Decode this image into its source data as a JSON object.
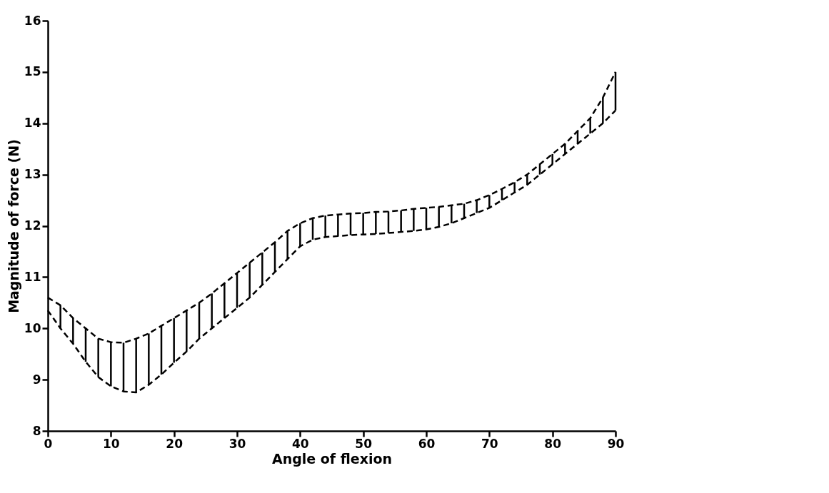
{
  "chart_data": {
    "type": "line",
    "xlabel": "Angle of flexion",
    "ylabel": "Magnitude of force (N)",
    "x": [
      0,
      2,
      4,
      6,
      8,
      10,
      12,
      14,
      16,
      18,
      20,
      22,
      24,
      26,
      28,
      30,
      32,
      34,
      36,
      38,
      40,
      42,
      44,
      46,
      48,
      50,
      52,
      54,
      56,
      58,
      60,
      62,
      64,
      66,
      68,
      70,
      72,
      74,
      76,
      78,
      80,
      82,
      84,
      86,
      88,
      90
    ],
    "series": [
      {
        "color": "#000000",
        "errors": [
          null,
          [
            10.0,
            10.45
          ],
          [
            9.7,
            10.2
          ],
          [
            9.35,
            10.0
          ],
          [
            9.05,
            9.8
          ],
          [
            8.87,
            9.73
          ],
          [
            8.77,
            9.72
          ],
          [
            8.75,
            9.8
          ],
          [
            8.9,
            9.9
          ],
          [
            9.1,
            10.05
          ],
          [
            9.33,
            10.2
          ],
          [
            9.55,
            10.35
          ],
          [
            9.8,
            10.5
          ],
          [
            10.0,
            10.68
          ],
          [
            10.2,
            10.88
          ],
          [
            10.4,
            11.08
          ],
          [
            10.6,
            11.28
          ],
          [
            10.85,
            11.48
          ],
          [
            11.1,
            11.68
          ],
          [
            11.35,
            11.9
          ],
          [
            11.6,
            12.05
          ],
          [
            11.73,
            12.15
          ],
          [
            11.78,
            12.2
          ],
          [
            11.8,
            12.22
          ],
          [
            11.82,
            12.24
          ],
          [
            11.83,
            12.25
          ],
          [
            11.84,
            12.27
          ],
          [
            11.86,
            12.28
          ],
          [
            11.88,
            12.3
          ],
          [
            11.9,
            12.33
          ],
          [
            11.93,
            12.35
          ],
          [
            11.98,
            12.37
          ],
          [
            12.05,
            12.4
          ],
          [
            12.15,
            12.43
          ],
          [
            12.25,
            12.5
          ],
          [
            12.35,
            12.6
          ],
          [
            12.5,
            12.72
          ],
          [
            12.65,
            12.85
          ],
          [
            12.8,
            13.0
          ],
          [
            13.0,
            13.2
          ],
          [
            13.2,
            13.4
          ],
          [
            13.4,
            13.6
          ],
          [
            13.6,
            13.85
          ],
          [
            13.8,
            14.1
          ],
          [
            14.0,
            14.5
          ],
          [
            14.25,
            15.0
          ]
        ],
        "values": [
          10.6,
          10.45,
          10.2,
          10.0,
          9.8,
          9.73,
          9.72,
          9.8,
          9.9,
          10.05,
          10.2,
          10.35,
          10.5,
          10.68,
          10.88,
          11.08,
          11.28,
          11.48,
          11.68,
          11.9,
          12.05,
          12.15,
          12.2,
          12.22,
          12.24,
          12.25,
          12.27,
          12.28,
          12.3,
          12.33,
          12.35,
          12.37,
          12.4,
          12.43,
          12.5,
          12.6,
          12.72,
          12.85,
          13.0,
          13.2,
          13.4,
          13.6,
          13.85,
          14.1,
          14.5,
          15.0
        ]
      },
      {
        "color": "#000000",
        "values": [
          10.35,
          10.0,
          9.7,
          9.35,
          9.05,
          8.87,
          8.77,
          8.75,
          8.9,
          9.1,
          9.33,
          9.55,
          9.8,
          10.0,
          10.2,
          10.4,
          10.6,
          10.85,
          11.1,
          11.35,
          11.6,
          11.73,
          11.78,
          11.8,
          11.82,
          11.83,
          11.84,
          11.86,
          11.88,
          11.9,
          11.93,
          11.98,
          12.05,
          12.15,
          12.25,
          12.35,
          12.5,
          12.65,
          12.8,
          13.0,
          13.2,
          13.4,
          13.6,
          13.8,
          14.0,
          14.25
        ]
      }
    ],
    "xlim": [
      0,
      90
    ],
    "xticks": [
      0,
      10,
      20,
      30,
      40,
      50,
      60,
      70,
      80,
      90
    ],
    "ylim": [
      8,
      16
    ],
    "yticks": [
      8,
      9,
      10,
      11,
      12,
      13,
      14,
      15,
      16
    ],
    "grid": false,
    "legend": false,
    "marker": "none",
    "line_style": "dashed"
  }
}
